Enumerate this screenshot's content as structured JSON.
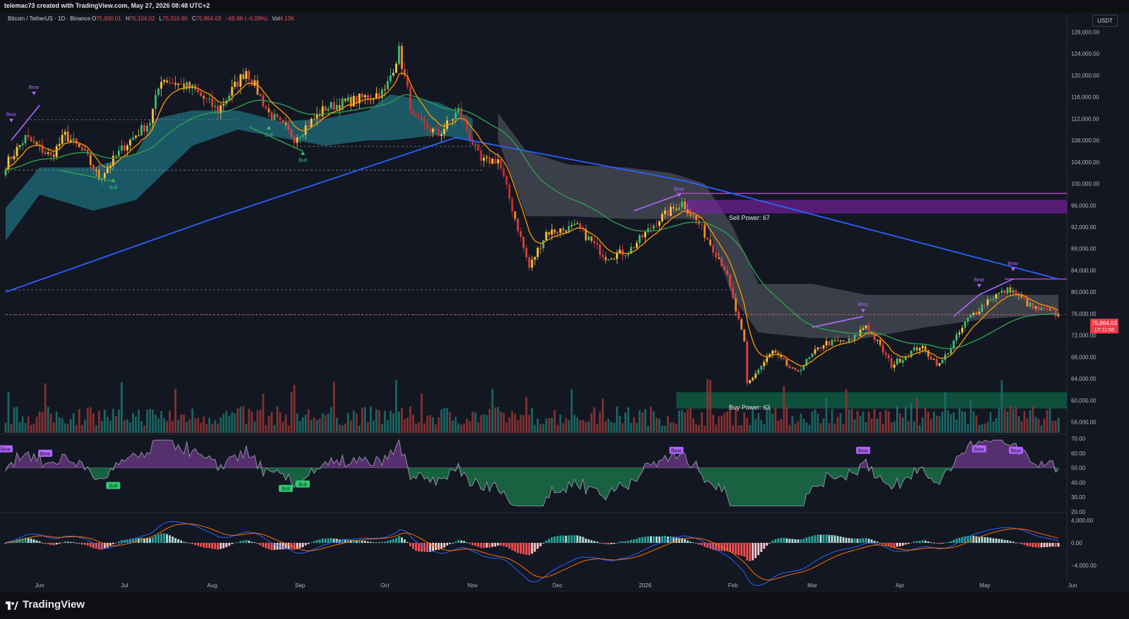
{
  "header": {
    "credit": "telemac73 created with TradingView.com, May 27, 2026 08:48 UTC+2",
    "symbol": "Bitcoin / TetherUS · 1D · Binance",
    "ohlc": {
      "open_label": "O",
      "open": "75,930.01",
      "high_label": "H",
      "high": "76,104.02",
      "low_label": "L",
      "low": "75,310.90",
      "close_label": "C",
      "close": "75,864.03",
      "change": "−65.98 (−0.09%)",
      "vol_label": "Vol",
      "vol": "4.13K"
    },
    "currency": "USDT"
  },
  "price_tag": {
    "price": "75,864.03",
    "countdown": "17:11:56"
  },
  "annotations": {
    "sell_power": "Sell Power: 67",
    "buy_power": "Buy Power: 63",
    "bear": "Bear",
    "bull": "Bull"
  },
  "footer": {
    "brand": "TradingView"
  },
  "colors": {
    "background": "#131722",
    "up": "#26a69a",
    "down": "#ef5350",
    "ema_fast": "#ff9800",
    "ma_200": "#2962ff",
    "ma_green": "#2e9c4e",
    "cloud_teal": "#1f6f7c",
    "cloud_gray": "#5d606b",
    "purple": "#9c27b0",
    "rsi_bear": "#b266ff",
    "rsi_bull": "#2ecc71"
  },
  "chart_data": [
    {
      "type": "candlestick",
      "panel": "price",
      "y_axis_ticks": [
        "128,000.00",
        "124,000.00",
        "120,000.00",
        "116,000.00",
        "112,000.00",
        "108,000.00",
        "104,000.00",
        "100,000.00",
        "96,000.00",
        "92,000.00",
        "88,000.00",
        "84,000.00",
        "80,000.00",
        "76,000.00",
        "72,000.00",
        "68,000.00",
        "64,000.00",
        "60,000.00",
        "56,000.00"
      ],
      "y_axis_values": [
        128000,
        124000,
        120000,
        116000,
        112000,
        108000,
        104000,
        100000,
        96000,
        92000,
        88000,
        84000,
        80000,
        76000,
        72000,
        68000,
        64000,
        60000,
        56000
      ],
      "x_axis_ticks": [
        "Jun",
        "Jul",
        "Aug",
        "Sep",
        "Oct",
        "Nov",
        "Dec",
        "2026",
        "Feb",
        "Mar",
        "Apr",
        "May",
        "Jun"
      ],
      "ylim": [
        54000,
        130000
      ],
      "close_series_anchors": {
        "dates": [
          "2025-05-20",
          "2025-05-27",
          "2025-06-05",
          "2025-06-10",
          "2025-06-17",
          "2025-06-22",
          "2025-07-01",
          "2025-07-10",
          "2025-07-14",
          "2025-07-25",
          "2025-08-03",
          "2025-08-13",
          "2025-08-21",
          "2025-08-30",
          "2025-09-10",
          "2025-09-21",
          "2025-10-01",
          "2025-10-06",
          "2025-10-11",
          "2025-10-20",
          "2025-10-27",
          "2025-11-04",
          "2025-11-10",
          "2025-11-21",
          "2025-11-27",
          "2025-12-08",
          "2025-12-18",
          "2025-12-26",
          "2026-01-06",
          "2026-01-14",
          "2026-01-20",
          "2026-01-29",
          "2026-02-05",
          "2026-02-06",
          "2026-02-15",
          "2026-02-23",
          "2026-03-05",
          "2026-03-15",
          "2026-03-20",
          "2026-03-29",
          "2026-04-08",
          "2026-04-15",
          "2026-04-25",
          "2026-05-03",
          "2026-05-10",
          "2026-05-18",
          "2026-05-27"
        ],
        "close": [
          103500,
          108500,
          105000,
          109000,
          105500,
          101000,
          107000,
          111500,
          119500,
          117500,
          113500,
          121000,
          113000,
          108500,
          114000,
          115500,
          117000,
          124500,
          112000,
          109000,
          113500,
          104000,
          104500,
          84500,
          91000,
          92000,
          86500,
          87500,
          93500,
          96500,
          92500,
          84500,
          70500,
          63000,
          69000,
          65000,
          70500,
          71000,
          74000,
          66500,
          70000,
          66500,
          75000,
          79000,
          80500,
          77000,
          75864
        ]
      },
      "overlays": [
        {
          "name": "EMA fast",
          "color": "#ff9800"
        },
        {
          "name": "MA 200",
          "color": "#2962ff",
          "anchors": {
            "dates": [
              "2025-05-20",
              "2025-08-01",
              "2025-10-26",
              "2026-01-15",
              "2026-05-27"
            ],
            "values": [
              80000,
              93500,
              108500,
              100500,
              82400
            ]
          }
        },
        {
          "name": "MA green",
          "color": "#2e9c4e"
        }
      ],
      "annotations": [
        {
          "label": "Sell Power: 67",
          "zone": [
            94500,
            97000
          ],
          "line": 98200
        },
        {
          "label": "Buy Power: 63",
          "zone": [
            58500,
            61500
          ]
        }
      ],
      "last_price": 75864.03
    },
    {
      "type": "area",
      "panel": "rsi",
      "y_axis_ticks": [
        "70.00",
        "60.00",
        "50.00",
        "40.00",
        "30.00",
        "20.00"
      ],
      "y_axis_values": [
        70,
        60,
        50,
        40,
        30,
        20
      ],
      "ylim": [
        20,
        71
      ],
      "midline": 50
    },
    {
      "type": "bar",
      "panel": "macd",
      "y_axis_ticks": [
        "4,000.00",
        "0.00",
        "−4,000.00"
      ],
      "y_axis_values": [
        4000,
        0,
        -4000
      ],
      "ylim": [
        -6500,
        5000
      ]
    }
  ]
}
